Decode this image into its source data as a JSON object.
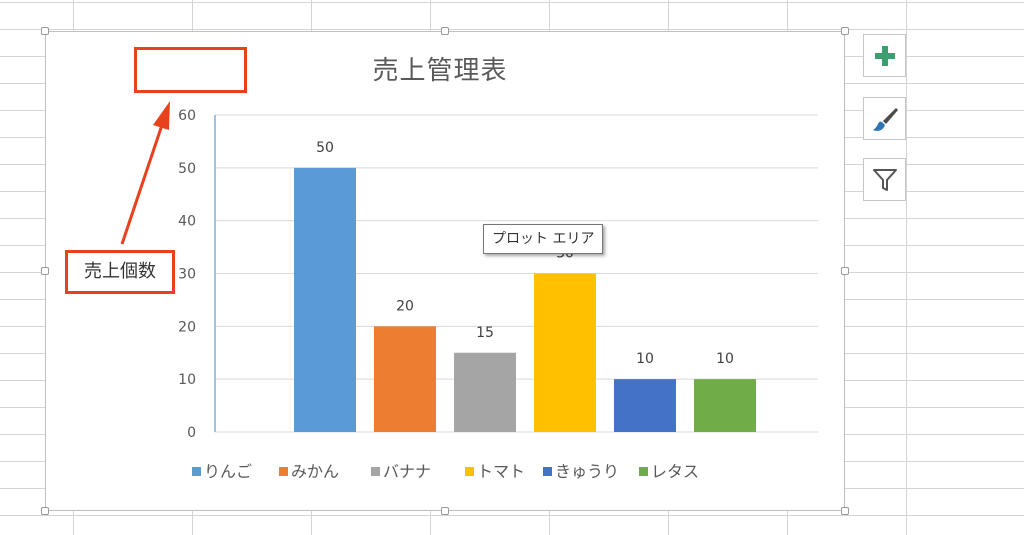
{
  "chart_data": {
    "type": "bar",
    "title": "売上管理表",
    "ylabel": "売上個数",
    "xlabel": "",
    "categories": [
      "りんご",
      "みかん",
      "バナナ",
      "トマト",
      "きゅうり",
      "レタス"
    ],
    "values": [
      50,
      20,
      15,
      30,
      10,
      10
    ],
    "colors": [
      "#5b9bd5",
      "#ed7d31",
      "#a5a5a5",
      "#ffc000",
      "#4472c4",
      "#70ad47"
    ],
    "ylim": [
      0,
      60
    ],
    "yticks": [
      0,
      10,
      20,
      30,
      40,
      50,
      60
    ],
    "grid": true,
    "data_labels": true,
    "legend_position": "bottom"
  },
  "tooltip": "プロット エリア",
  "side_buttons": [
    {
      "icon": "plus-icon"
    },
    {
      "icon": "brush-icon"
    },
    {
      "icon": "filter-icon"
    }
  ],
  "annotation": {
    "color": "#e8411d"
  }
}
